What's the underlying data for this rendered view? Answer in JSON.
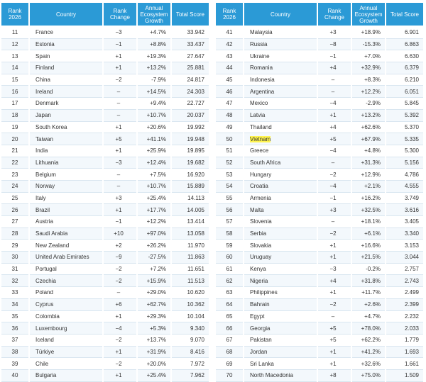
{
  "tables": [
    {
      "headers": [
        "Rank 2026",
        "Country",
        "Rank Change",
        "Annual Ecosystem Growth",
        "Total Score"
      ],
      "rows": [
        [
          "11",
          "France",
          "−3",
          "+4.7%",
          "33.942"
        ],
        [
          "12",
          "Estonia",
          "−1",
          "+8.8%",
          "33.437"
        ],
        [
          "13",
          "Spain",
          "+1",
          "+19.3%",
          "27.647"
        ],
        [
          "14",
          "Finland",
          "+1",
          "+13.2%",
          "25.881"
        ],
        [
          "15",
          "China",
          "−2",
          "-7.9%",
          "24.817"
        ],
        [
          "16",
          "Ireland",
          "–",
          "+14.5%",
          "24.303"
        ],
        [
          "17",
          "Denmark",
          "–",
          "+9.4%",
          "22.727"
        ],
        [
          "18",
          "Japan",
          "–",
          "+10.7%",
          "20.037"
        ],
        [
          "19",
          "South Korea",
          "+1",
          "+20.6%",
          "19.992"
        ],
        [
          "20",
          "Taiwan",
          "+5",
          "+41.1%",
          "19.948"
        ],
        [
          "21",
          "India",
          "+1",
          "+25.9%",
          "19.895"
        ],
        [
          "22",
          "Lithuania",
          "−3",
          "+12.4%",
          "19.682"
        ],
        [
          "23",
          "Belgium",
          "–",
          "+7.5%",
          "16.920"
        ],
        [
          "24",
          "Norway",
          "–",
          "+10.7%",
          "15.889"
        ],
        [
          "25",
          "Italy",
          "+3",
          "+25.4%",
          "14.113"
        ],
        [
          "26",
          "Brazil",
          "+1",
          "+17.7%",
          "14.005"
        ],
        [
          "27",
          "Austria",
          "−1",
          "+12.2%",
          "13.414"
        ],
        [
          "28",
          "Saudi Arabia",
          "+10",
          "+97.0%",
          "13.058"
        ],
        [
          "29",
          "New Zealand",
          "+2",
          "+26.2%",
          "11.970"
        ],
        [
          "30",
          "United Arab Emirates",
          "−9",
          "-27.5%",
          "11.863"
        ],
        [
          "31",
          "Portugal",
          "−2",
          "+7.2%",
          "11.651"
        ],
        [
          "32",
          "Czechia",
          "−2",
          "+15.9%",
          "11.513"
        ],
        [
          "33",
          "Poland",
          "–",
          "+29.0%",
          "10.620"
        ],
        [
          "34",
          "Cyprus",
          "+6",
          "+62.7%",
          "10.362"
        ],
        [
          "35",
          "Colombia",
          "+1",
          "+29.3%",
          "10.104"
        ],
        [
          "36",
          "Luxembourg",
          "−4",
          "+5.3%",
          "9.340"
        ],
        [
          "37",
          "Iceland",
          "−2",
          "+13.7%",
          "9.070"
        ],
        [
          "38",
          "Türkiye",
          "+1",
          "+31.9%",
          "8.416"
        ],
        [
          "39",
          "Chile",
          "−2",
          "+20.0%",
          "7.972"
        ],
        [
          "40",
          "Bulgaria",
          "+1",
          "+25.4%",
          "7.962"
        ]
      ]
    },
    {
      "headers": [
        "Rank 2026",
        "Country",
        "Rank Change",
        "Annual Ecosystem Growth",
        "Total Score"
      ],
      "rows": [
        [
          "41",
          "Malaysia",
          "+3",
          "+18.9%",
          "6.901"
        ],
        [
          "42",
          "Russia",
          "−8",
          "-15.3%",
          "6.863"
        ],
        [
          "43",
          "Ukraine",
          "−1",
          "+7.0%",
          "6.630"
        ],
        [
          "44",
          "Romania",
          "+4",
          "+32.9%",
          "6.379"
        ],
        [
          "45",
          "Indonesia",
          "–",
          "+8.3%",
          "6.210"
        ],
        [
          "46",
          "Argentina",
          "–",
          "+12.2%",
          "6.051"
        ],
        [
          "47",
          "Mexico",
          "−4",
          "-2.9%",
          "5.845"
        ],
        [
          "48",
          "Latvia",
          "+1",
          "+13.2%",
          "5.392"
        ],
        [
          "49",
          "Thailand",
          "+4",
          "+62.6%",
          "5.370"
        ],
        [
          "50",
          "Vietnam",
          "+5",
          "+67.9%",
          "5.335"
        ],
        [
          "51",
          "Greece",
          "−4",
          "+4.8%",
          "5.300"
        ],
        [
          "52",
          "South Africa",
          "–",
          "+31.3%",
          "5.156"
        ],
        [
          "53",
          "Hungary",
          "−2",
          "+12.9%",
          "4.786"
        ],
        [
          "54",
          "Croatia",
          "−4",
          "+2.1%",
          "4.555"
        ],
        [
          "55",
          "Armenia",
          "−1",
          "+16.2%",
          "3.749"
        ],
        [
          "56",
          "Malta",
          "+3",
          "+32.5%",
          "3.616"
        ],
        [
          "57",
          "Slovenia",
          "–",
          "+18.1%",
          "3.405"
        ],
        [
          "58",
          "Serbia",
          "−2",
          "+6.1%",
          "3.340"
        ],
        [
          "59",
          "Slovakia",
          "+1",
          "+16.6%",
          "3.153"
        ],
        [
          "60",
          "Uruguay",
          "+1",
          "+21.5%",
          "3.044"
        ],
        [
          "61",
          "Kenya",
          "−3",
          "-0.2%",
          "2.757"
        ],
        [
          "62",
          "Nigeria",
          "+4",
          "+31.8%",
          "2.743"
        ],
        [
          "63",
          "Philippines",
          "+1",
          "+11.7%",
          "2.499"
        ],
        [
          "64",
          "Bahrain",
          "−2",
          "+2.6%",
          "2.399"
        ],
        [
          "65",
          "Egypt",
          "–",
          "+4.7%",
          "2.232"
        ],
        [
          "66",
          "Georgia",
          "+5",
          "+78.0%",
          "2.033"
        ],
        [
          "67",
          "Pakistan",
          "+5",
          "+62.2%",
          "1.779"
        ],
        [
          "68",
          "Jordan",
          "+1",
          "+41.2%",
          "1.693"
        ],
        [
          "69",
          "Sri Lanka",
          "+1",
          "+32.6%",
          "1.661"
        ],
        [
          "70",
          "North Macedonia",
          "+8",
          "+75.0%",
          "1.509"
        ]
      ]
    }
  ]
}
